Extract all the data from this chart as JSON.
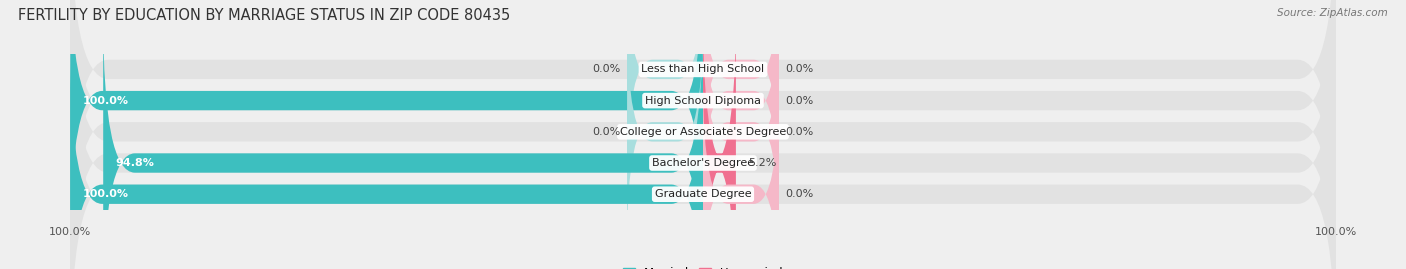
{
  "title": "FERTILITY BY EDUCATION BY MARRIAGE STATUS IN ZIP CODE 80435",
  "source": "Source: ZipAtlas.com",
  "categories": [
    "Less than High School",
    "High School Diploma",
    "College or Associate's Degree",
    "Bachelor's Degree",
    "Graduate Degree"
  ],
  "married_values": [
    0.0,
    100.0,
    0.0,
    94.8,
    100.0
  ],
  "unmarried_values": [
    0.0,
    0.0,
    0.0,
    5.2,
    0.0
  ],
  "married_color": "#3DBFBF",
  "unmarried_color": "#F07090",
  "married_color_light": "#A8DEDE",
  "unmarried_color_light": "#F5B8C8",
  "bg_color": "#efefef",
  "bar_bg_color": "#e2e2e2",
  "bar_height": 0.62,
  "max_value": 100.0,
  "title_fontsize": 10.5,
  "label_fontsize": 8.0,
  "axis_fontsize": 8.0,
  "legend_fontsize": 8.5,
  "source_fontsize": 7.5
}
